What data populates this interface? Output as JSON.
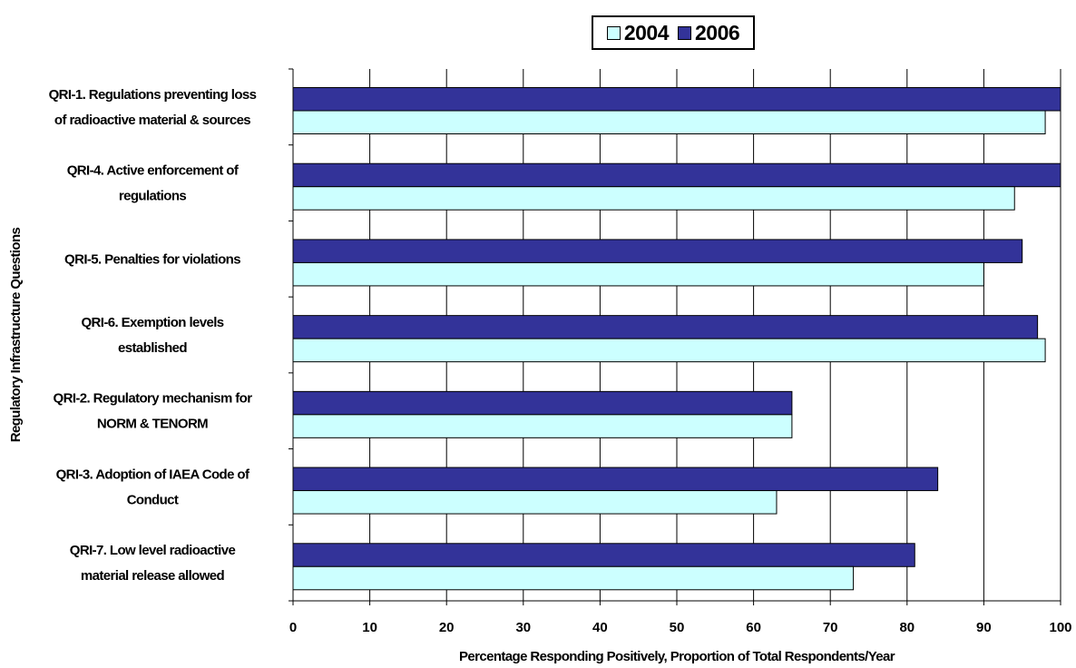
{
  "chart_data": {
    "type": "bar",
    "orientation": "horizontal",
    "categories": [
      [
        "QRI-1. Regulations preventing loss",
        "of radioactive material & sources"
      ],
      [
        "QRI-4. Active enforcement of",
        "regulations"
      ],
      [
        "QRI-5. Penalties for violations"
      ],
      [
        "QRI-6. Exemption levels",
        "established"
      ],
      [
        "QRI-2. Regulatory mechanism for",
        "NORM & TENORM"
      ],
      [
        "QRI-3. Adoption of IAEA Code of",
        "Conduct"
      ],
      [
        "QRI-7. Low level radioactive",
        "material release allowed"
      ]
    ],
    "series": [
      {
        "name": "2006",
        "color": "#333399",
        "values": [
          100,
          100,
          95,
          97,
          65,
          84,
          81
        ]
      },
      {
        "name": "2004",
        "color": "#CCFFFF",
        "values": [
          98,
          94,
          90,
          98,
          65,
          63,
          73
        ]
      }
    ],
    "legend_order": [
      "2004",
      "2006"
    ],
    "legend_position": "top-right",
    "xlabel": "Percentage Responding Positively, Proportion of Total Respondents/Year",
    "ylabel": "Regulatory Infrastructure Questions",
    "xlim": [
      0,
      100
    ],
    "xticks": [
      "0",
      "10",
      "20",
      "30",
      "40",
      "50",
      "60",
      "70",
      "80",
      "90",
      "100"
    ],
    "grid": "vertical"
  }
}
